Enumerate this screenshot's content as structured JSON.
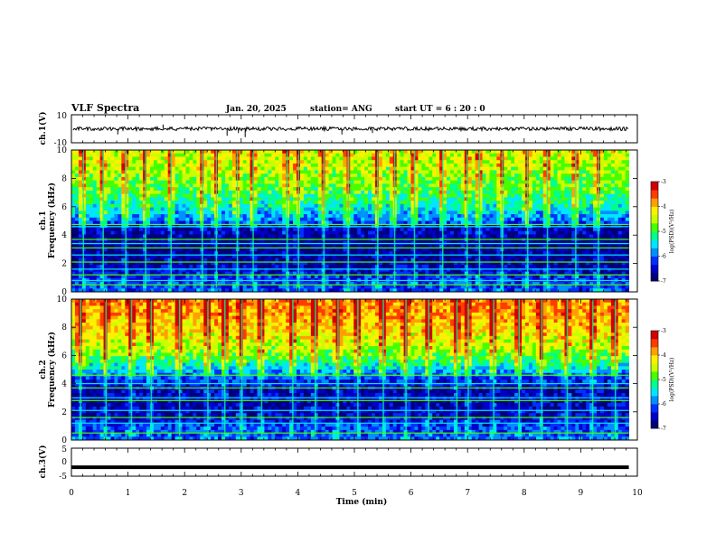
{
  "header": {
    "title": "VLF Spectra",
    "date": "Jan. 20, 2025",
    "station": "station= ANG",
    "start": "start  UT  =   6 : 20 : 0"
  },
  "colorscale": [
    "#00007a",
    "#0000c8",
    "#0030ff",
    "#0090ff",
    "#00e6ff",
    "#00ff8c",
    "#46ff00",
    "#c8ff00",
    "#fff000",
    "#ffa000",
    "#ff3c00",
    "#d20000",
    "#ffffff"
  ],
  "colorbar": {
    "label": "log(PSD)(V²/Hz)",
    "ticks": [
      "-3",
      "-4",
      "-5",
      "-6",
      "-7"
    ]
  },
  "chart_data": [
    {
      "type": "line",
      "name": "ch1_waveform",
      "ylabel": "ch.1(V)",
      "ylim": [
        -10,
        10
      ],
      "yticks": [
        "10",
        "-10"
      ],
      "baseline": 0,
      "spikes_min": [
        0.82,
        1.62,
        2.75,
        2.95,
        3.07,
        4.78,
        5.32
      ],
      "spikes_value": [
        -4,
        3,
        -5,
        -3,
        -6,
        -4,
        -3
      ],
      "xlim": [
        0,
        10
      ]
    },
    {
      "type": "heatmap",
      "name": "ch1_spectrogram",
      "ylabel": "ch.1\nFrequency (kHz)",
      "xlim": [
        0,
        10
      ],
      "ylim": [
        0,
        10
      ],
      "xticks": [
        "0",
        "1",
        "2",
        "3",
        "4",
        "5",
        "6",
        "7",
        "8",
        "9",
        "10"
      ],
      "yticks": [
        "0",
        "2",
        "4",
        "6",
        "8",
        "10"
      ],
      "data_end_min": 9.85,
      "intensity_profile": [
        {
          "f": 0,
          "v": 0.22
        },
        {
          "f": 1,
          "v": 0.18
        },
        {
          "f": 1.5,
          "v": 0.1
        },
        {
          "f": 2.5,
          "v": 0.05
        },
        {
          "f": 3.5,
          "v": 0.04
        },
        {
          "f": 4.5,
          "v": 0.1
        },
        {
          "f": 5,
          "v": 0.25
        },
        {
          "f": 6,
          "v": 0.4
        },
        {
          "f": 7,
          "v": 0.5
        },
        {
          "f": 8,
          "v": 0.56
        },
        {
          "f": 9,
          "v": 0.62
        },
        {
          "f": 10,
          "v": 0.66
        }
      ],
      "tone_lines_khz": [
        0.5,
        0.8,
        1.2,
        1.6,
        2.1,
        2.6,
        3.1,
        3.4,
        3.7,
        4.6,
        4.75
      ],
      "burst_times_min": [
        0.2,
        0.55,
        0.95,
        1.3,
        1.75,
        2.3,
        2.55,
        2.92,
        3.2,
        3.8,
        4.0,
        4.45,
        4.88,
        5.4,
        5.7,
        6.05,
        6.55,
        6.98,
        7.2,
        7.6,
        8.05,
        8.4,
        8.9,
        9.3
      ]
    },
    {
      "type": "heatmap",
      "name": "ch2_spectrogram",
      "ylabel": "ch.2\nFrequency (kHz)",
      "xlim": [
        0,
        10
      ],
      "ylim": [
        0,
        10
      ],
      "xticks": [
        "0",
        "1",
        "2",
        "3",
        "4",
        "5",
        "6",
        "7",
        "8",
        "9",
        "10"
      ],
      "yticks": [
        "0",
        "2",
        "4",
        "6",
        "8",
        "10"
      ],
      "data_end_min": 9.85,
      "intensity_profile": [
        {
          "f": 0,
          "v": 0.25
        },
        {
          "f": 1,
          "v": 0.2
        },
        {
          "f": 1.5,
          "v": 0.12
        },
        {
          "f": 2.5,
          "v": 0.08
        },
        {
          "f": 3.5,
          "v": 0.1
        },
        {
          "f": 4.5,
          "v": 0.22
        },
        {
          "f": 5,
          "v": 0.35
        },
        {
          "f": 6,
          "v": 0.55
        },
        {
          "f": 7,
          "v": 0.65
        },
        {
          "f": 8,
          "v": 0.72
        },
        {
          "f": 9,
          "v": 0.78
        },
        {
          "f": 10,
          "v": 0.8
        }
      ],
      "tone_lines_khz": [
        0.5,
        1.2,
        1.6,
        2.1,
        2.8,
        3.0,
        3.7,
        4.0,
        4.6
      ],
      "burst_times_min": [
        0.15,
        0.6,
        1.05,
        1.4,
        1.9,
        2.4,
        2.7,
        3.0,
        3.35,
        3.9,
        4.3,
        4.7,
        5.05,
        5.5,
        5.9,
        6.3,
        6.8,
        7.0,
        7.45,
        7.9,
        8.3,
        8.75,
        9.2,
        9.6
      ]
    },
    {
      "type": "line",
      "name": "ch3_trace",
      "ylabel": "ch.3(V)",
      "ylim": [
        -5,
        5
      ],
      "yticks": [
        "5",
        "0",
        "-5"
      ],
      "value": -1.8,
      "xlim": [
        0,
        10
      ]
    }
  ],
  "xaxis": {
    "label": "Time  (min)",
    "ticks": [
      "0",
      "1",
      "2",
      "3",
      "4",
      "5",
      "6",
      "7",
      "8",
      "9",
      "10"
    ],
    "range": [
      0,
      10
    ]
  }
}
